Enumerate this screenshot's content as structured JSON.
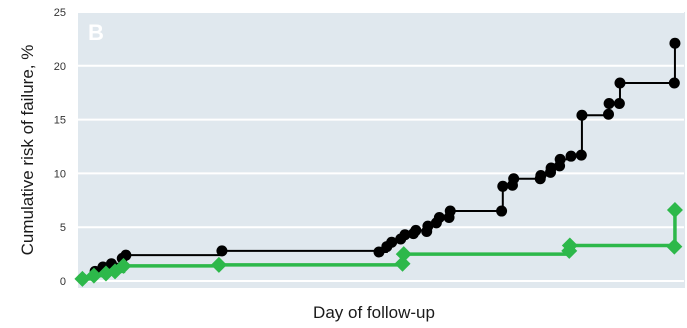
{
  "chart_data": {
    "type": "line",
    "panel_label": "B",
    "title": "",
    "xlabel": "Day of follow-up",
    "ylabel": "Cumulative risk of failure, %",
    "ylim": [
      0,
      25
    ],
    "yticks": [
      "0",
      "5",
      "10",
      "15",
      "20",
      "25"
    ],
    "xlim": [
      0,
      100
    ],
    "grid": true,
    "legend": "none",
    "step": true,
    "series": [
      {
        "color": "#000000",
        "marker": "circle",
        "points": [
          {
            "x": 0.4,
            "y": 0.2
          },
          {
            "x": 2.5,
            "y": 0.9
          },
          {
            "x": 3.8,
            "y": 1.3
          },
          {
            "x": 5.2,
            "y": 1.6
          },
          {
            "x": 7.0,
            "y": 2.1
          },
          {
            "x": 7.6,
            "y": 2.4
          },
          {
            "x": 23.5,
            "y": 2.8
          },
          {
            "x": 49.5,
            "y": 2.7
          },
          {
            "x": 50.8,
            "y": 3.2
          },
          {
            "x": 51.6,
            "y": 3.6
          },
          {
            "x": 53.1,
            "y": 3.9
          },
          {
            "x": 53.8,
            "y": 4.3
          },
          {
            "x": 55.2,
            "y": 4.4
          },
          {
            "x": 55.6,
            "y": 4.7
          },
          {
            "x": 57.4,
            "y": 4.6
          },
          {
            "x": 57.6,
            "y": 5.1
          },
          {
            "x": 59.0,
            "y": 5.4
          },
          {
            "x": 59.5,
            "y": 5.9
          },
          {
            "x": 61.1,
            "y": 5.9
          },
          {
            "x": 61.3,
            "y": 6.5
          },
          {
            "x": 69.8,
            "y": 6.5
          },
          {
            "x": 70.0,
            "y": 8.8
          },
          {
            "x": 71.6,
            "y": 8.9
          },
          {
            "x": 71.8,
            "y": 9.5
          },
          {
            "x": 76.2,
            "y": 9.5
          },
          {
            "x": 76.3,
            "y": 9.8
          },
          {
            "x": 77.9,
            "y": 10.1
          },
          {
            "x": 78.0,
            "y": 10.5
          },
          {
            "x": 79.4,
            "y": 10.7
          },
          {
            "x": 79.5,
            "y": 11.3
          },
          {
            "x": 81.3,
            "y": 11.6
          },
          {
            "x": 83.0,
            "y": 11.7
          },
          {
            "x": 83.1,
            "y": 15.4
          },
          {
            "x": 87.5,
            "y": 15.5
          },
          {
            "x": 87.6,
            "y": 16.5
          },
          {
            "x": 89.3,
            "y": 16.5
          },
          {
            "x": 89.4,
            "y": 18.4
          },
          {
            "x": 98.4,
            "y": 18.4
          },
          {
            "x": 98.5,
            "y": 22.1
          }
        ]
      },
      {
        "color": "#2db84a",
        "marker": "diamond",
        "points": [
          {
            "x": 0.4,
            "y": 0.2
          },
          {
            "x": 2.3,
            "y": 0.5
          },
          {
            "x": 4.3,
            "y": 0.7
          },
          {
            "x": 5.8,
            "y": 0.9
          },
          {
            "x": 7.2,
            "y": 1.4
          },
          {
            "x": 23.0,
            "y": 1.5
          },
          {
            "x": 53.4,
            "y": 1.6
          },
          {
            "x": 53.6,
            "y": 2.5
          },
          {
            "x": 81.0,
            "y": 2.8
          },
          {
            "x": 81.1,
            "y": 3.3
          },
          {
            "x": 98.4,
            "y": 3.2
          },
          {
            "x": 98.5,
            "y": 6.6
          }
        ]
      }
    ]
  }
}
